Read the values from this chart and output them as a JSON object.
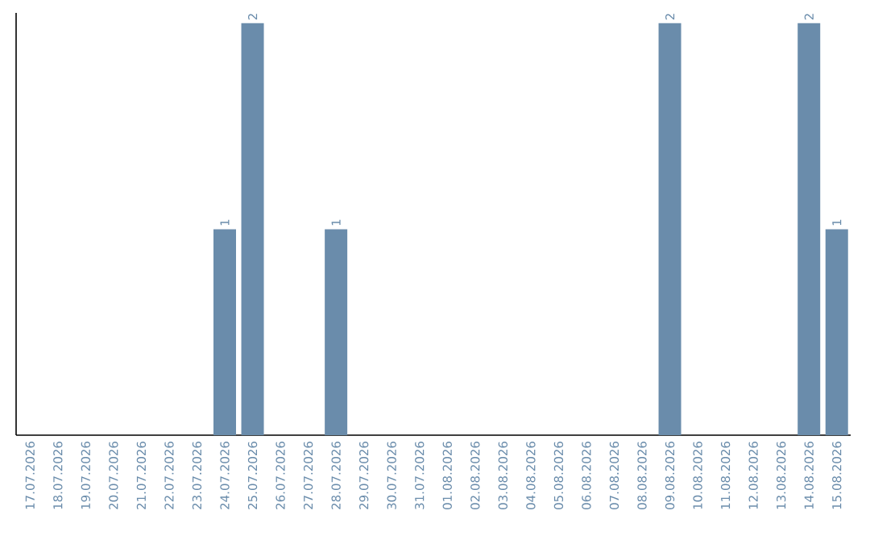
{
  "chart_data": {
    "type": "bar",
    "categories": [
      "17.07.2026",
      "18.07.2026",
      "19.07.2026",
      "20.07.2026",
      "21.07.2026",
      "22.07.2026",
      "23.07.2026",
      "24.07.2026",
      "25.07.2026",
      "26.07.2026",
      "27.07.2026",
      "28.07.2026",
      "29.07.2026",
      "30.07.2026",
      "31.07.2026",
      "01.08.2026",
      "02.08.2026",
      "03.08.2026",
      "04.08.2026",
      "05.08.2026",
      "06.08.2026",
      "07.08.2026",
      "08.08.2026",
      "09.08.2026",
      "10.08.2026",
      "11.08.2026",
      "12.08.2026",
      "13.08.2026",
      "14.08.2026",
      "15.08.2026"
    ],
    "values": [
      null,
      null,
      null,
      null,
      null,
      null,
      null,
      1,
      2,
      null,
      null,
      1,
      null,
      null,
      null,
      null,
      null,
      null,
      null,
      null,
      null,
      null,
      null,
      2,
      null,
      null,
      null,
      null,
      2,
      1
    ],
    "color": "#6a8cab",
    "ylim": [
      0,
      2.05
    ],
    "data_labels": true,
    "tick_labels": "x"
  }
}
